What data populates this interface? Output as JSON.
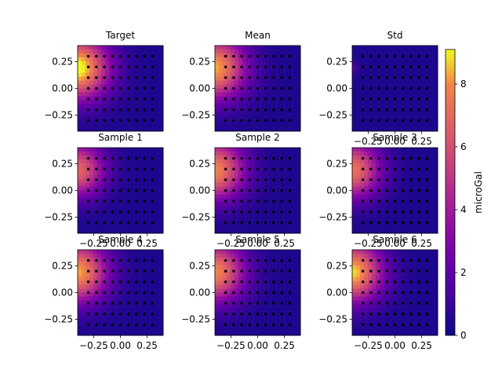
{
  "chart_data": {
    "type": "heatmap",
    "colormap": "plasma",
    "grid": false,
    "xlim": [
      -0.4,
      0.4
    ],
    "ylim": [
      -0.4,
      0.4
    ],
    "xticks": [
      -0.25,
      0.0,
      0.25
    ],
    "xtick_labels": [
      "−0.25",
      "0.00",
      "0.25"
    ],
    "yticks": [
      0.25,
      0.0,
      -0.25
    ],
    "ytick_labels": [
      "0.25",
      "0.00",
      "−0.25"
    ],
    "points": {
      "x": [
        -0.3,
        -0.225,
        -0.15,
        -0.075,
        0.0,
        0.075,
        0.15,
        0.225,
        0.3
      ],
      "y": [
        0.3,
        0.2,
        0.1,
        0.0,
        -0.1,
        -0.2,
        -0.3
      ]
    },
    "panels": [
      {
        "title": "Target",
        "show_xticks": false,
        "peak": 9.0,
        "spread": 0.2
      },
      {
        "title": "Mean",
        "show_xticks": false,
        "peak": 8.0,
        "spread": 0.2
      },
      {
        "title": "Std",
        "show_xticks": true,
        "peak": 1.3,
        "spread": 0.04
      },
      {
        "title": "Sample 1",
        "show_xticks": true,
        "peak": 6.5,
        "spread": 0.17
      },
      {
        "title": "Sample 2",
        "show_xticks": true,
        "peak": 7.5,
        "spread": 0.19
      },
      {
        "title": "Sample 3",
        "show_xticks": true,
        "peak": 7.0,
        "spread": 0.18
      },
      {
        "title": "Sample 4",
        "show_xticks": true,
        "peak": 8.0,
        "spread": 0.19
      },
      {
        "title": "Sample 5",
        "show_xticks": true,
        "peak": 7.5,
        "spread": 0.19
      },
      {
        "title": "Sample 6",
        "show_xticks": true,
        "peak": 8.5,
        "spread": 0.19
      }
    ],
    "source_point": {
      "x": -0.4,
      "y": 0.19
    },
    "colorbar": {
      "label": "microGal",
      "min": 0,
      "max": 9.1,
      "ticks": [
        0,
        2,
        4,
        6,
        8
      ],
      "tick_labels": [
        "0",
        "2",
        "4",
        "6",
        "8"
      ]
    }
  }
}
